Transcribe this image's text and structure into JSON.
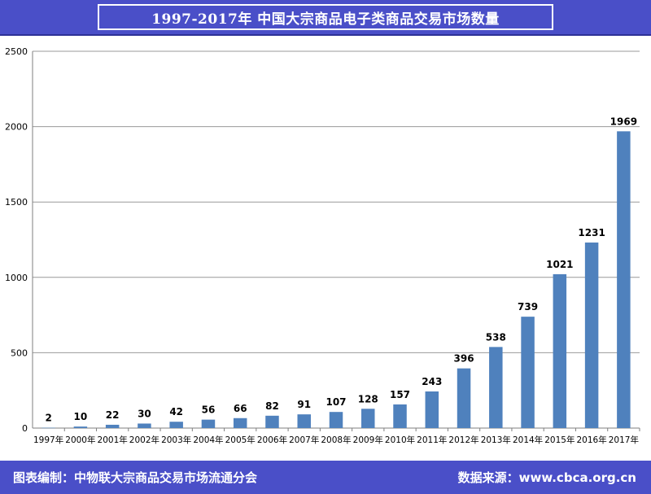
{
  "header": {
    "title": "1997-2017年  中国大宗商品电子类商品交易市场数量"
  },
  "footer": {
    "left": "图表编制：中物联大宗商品交易市场流通分会",
    "right": "数据来源：www.cbca.org.cn"
  },
  "colors": {
    "bar": "#4f81bd",
    "header_bg": "#4a4fc8",
    "grid": "#999999"
  },
  "chart_data": {
    "type": "bar",
    "title": "1997-2017年  中国大宗商品电子类商品交易市场数量",
    "xlabel": "",
    "ylabel": "",
    "ylim": [
      0,
      2500
    ],
    "yticks": [
      0,
      500,
      1000,
      1500,
      2000,
      2500
    ],
    "grid": true,
    "categories": [
      "1997年",
      "2000年",
      "2001年",
      "2002年",
      "2003年",
      "2004年",
      "2005年",
      "2006年",
      "2007年",
      "2008年",
      "2009年",
      "2010年",
      "2011年",
      "2012年",
      "2013年",
      "2014年",
      "2015年",
      "2016年",
      "2017年"
    ],
    "values": [
      2,
      10,
      22,
      30,
      42,
      56,
      66,
      82,
      91,
      107,
      128,
      157,
      243,
      396,
      538,
      739,
      1021,
      1231,
      1969
    ]
  }
}
